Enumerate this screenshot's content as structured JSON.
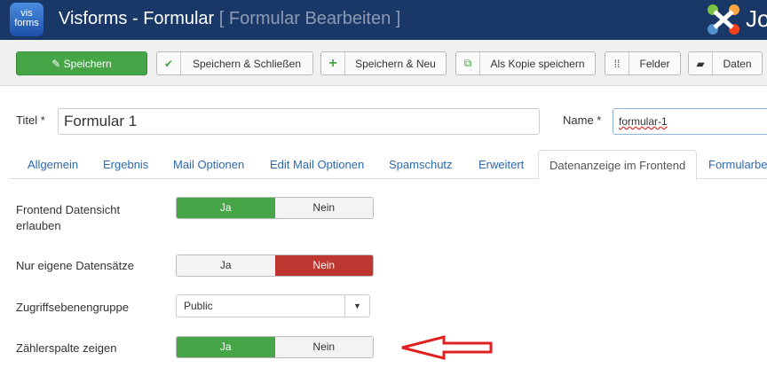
{
  "header": {
    "logo_text": "vis forms",
    "title": "Visforms - Formular",
    "subtitle": "[ Formular Bearbeiten ]",
    "brand_text": "Jo"
  },
  "toolbar": {
    "save": "Speichern",
    "save_close": "Speichern & Schließen",
    "save_new": "Speichern & Neu",
    "save_copy": "Als Kopie speichern",
    "fields": "Felder",
    "data": "Daten"
  },
  "form": {
    "title_label": "Titel *",
    "title_value": "Formular 1",
    "name_label": "Name *",
    "name_value": "formular-1"
  },
  "tabs": [
    {
      "label": "Allgemein"
    },
    {
      "label": "Ergebnis"
    },
    {
      "label": "Mail Optionen"
    },
    {
      "label": "Edit Mail Optionen"
    },
    {
      "label": "Spamschutz"
    },
    {
      "label": "Erweitert"
    },
    {
      "label": "Datenanzeige im Frontend",
      "active": true
    },
    {
      "label": "Formularbe"
    }
  ],
  "fields": [
    {
      "label": "Frontend Datensicht erlauben",
      "yes": "Ja",
      "no": "Nein",
      "value": "Ja"
    },
    {
      "label": "Nur eigene Datensätze",
      "yes": "Ja",
      "no": "Nein",
      "value": "Nein"
    },
    {
      "label": "Zugriffsebenengruppe",
      "value": "Public"
    },
    {
      "label": "Zählerspalte zeigen",
      "yes": "Ja",
      "no": "Nein",
      "value": "Ja"
    }
  ],
  "colors": {
    "header": "#1a3867",
    "green": "#46a546",
    "red": "#bd362f",
    "arrow": "#e02020"
  }
}
